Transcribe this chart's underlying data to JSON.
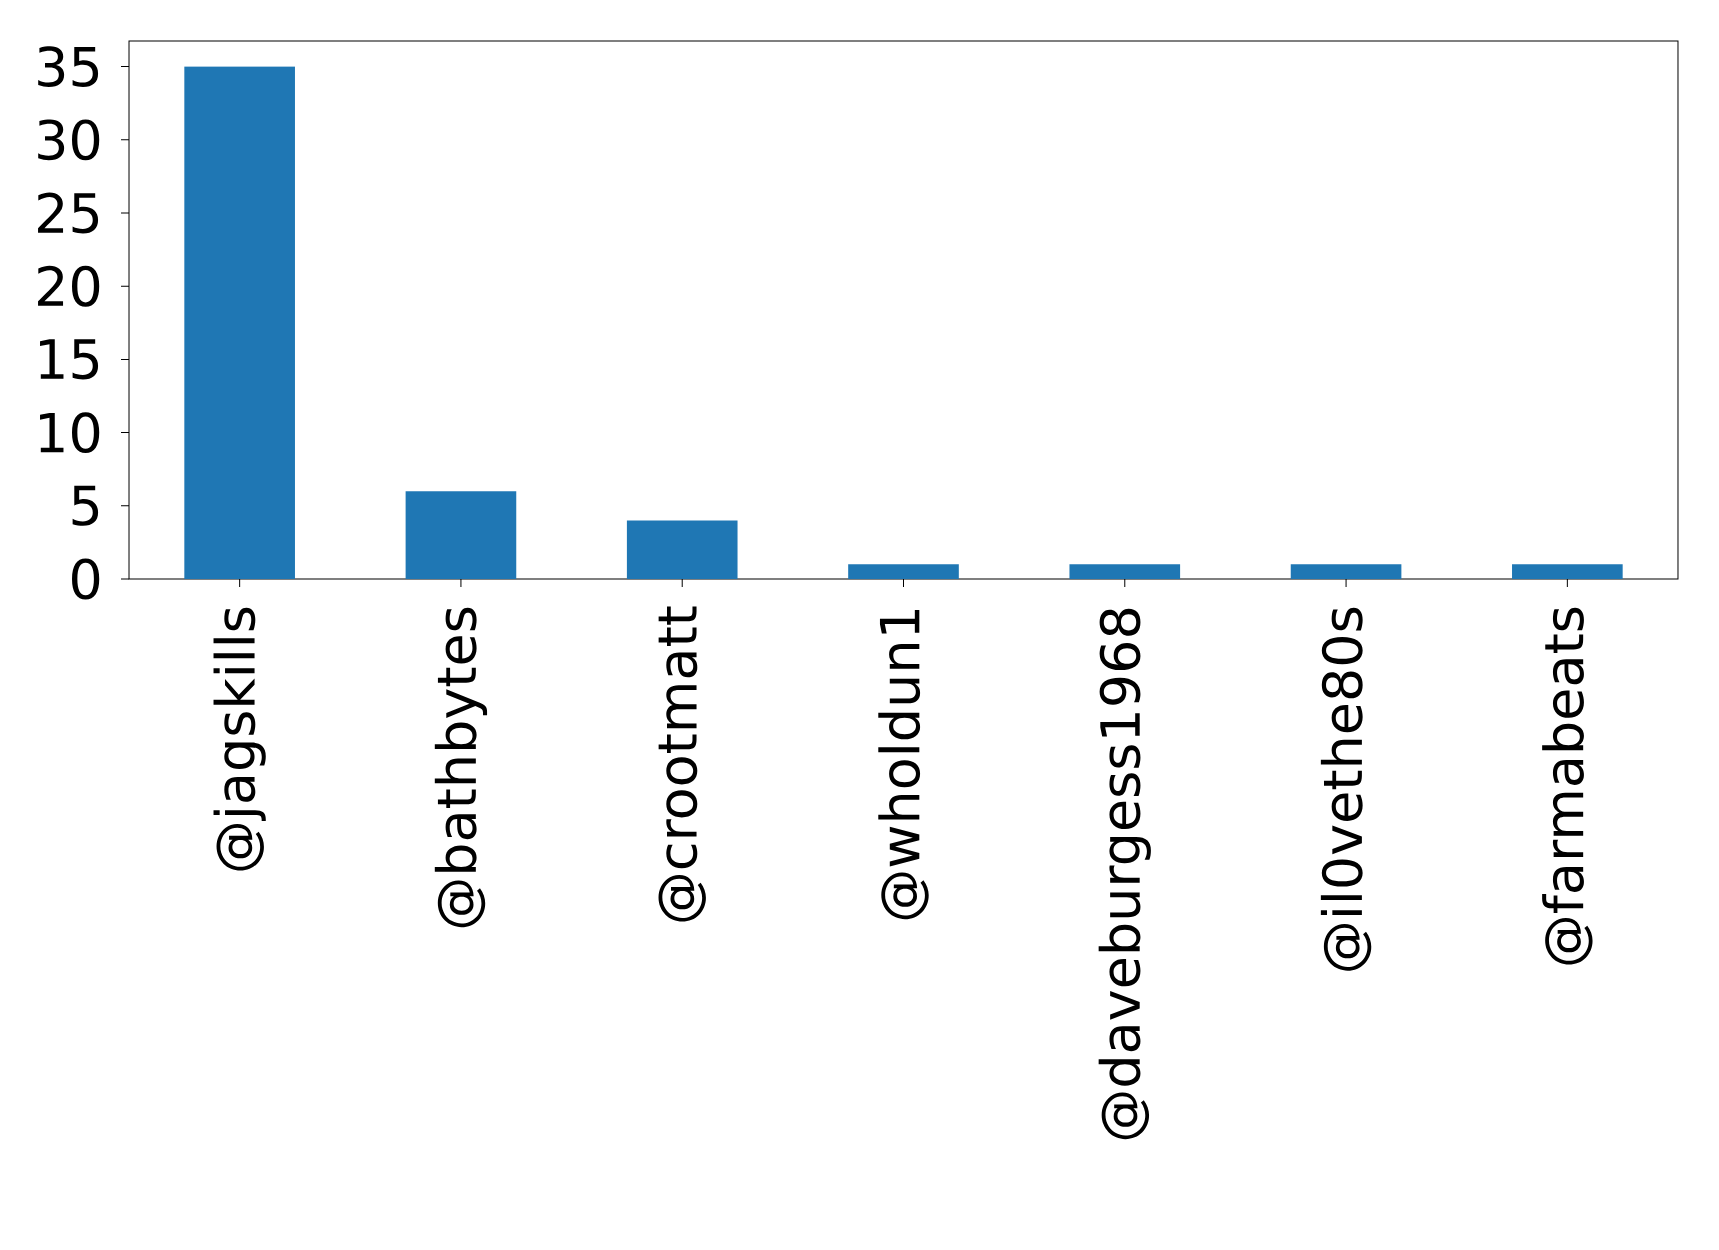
{
  "chart_data": {
    "type": "bar",
    "categories": [
      "@jagskills",
      "@bathbytes",
      "@crootmatt",
      "@wholdun1",
      "@daveburgess1968",
      "@il0vethe80s",
      "@farmabeats"
    ],
    "values": [
      35,
      6,
      4,
      1,
      1,
      1,
      1
    ],
    "color": "#1f77b4",
    "ylim": [
      0,
      36.75
    ],
    "yticks": [
      0,
      5,
      10,
      15,
      20,
      25,
      30,
      35
    ]
  }
}
